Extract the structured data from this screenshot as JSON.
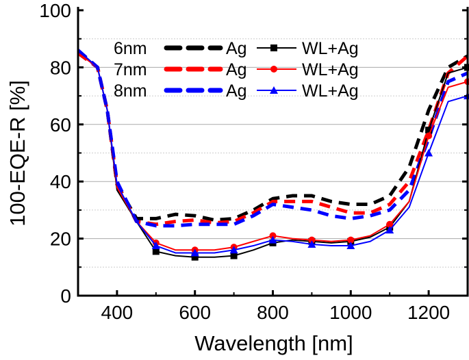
{
  "chart_data": {
    "type": "line",
    "xlabel": "Wavelength [nm]",
    "ylabel": "100-EQE-R [%]",
    "xlim": [
      300,
      1300
    ],
    "ylim": [
      0,
      100
    ],
    "xticks": [
      400,
      600,
      800,
      1000,
      1200
    ],
    "yticks": [
      0,
      20,
      40,
      60,
      80,
      100
    ],
    "grid": "horizontal, solid at major ticks, dotted at minor ticks",
    "legend": {
      "placement": "top",
      "rows": [
        {
          "thickness": "6nm",
          "dashed_label": "Ag",
          "solid_label": "WL+Ag"
        },
        {
          "thickness": "7nm",
          "dashed_label": "Ag",
          "solid_label": "WL+Ag"
        },
        {
          "thickness": "8nm",
          "dashed_label": "Ag",
          "solid_label": "WL+Ag"
        }
      ]
    },
    "x": [
      300,
      350,
      375,
      400,
      450,
      500,
      550,
      600,
      650,
      700,
      750,
      800,
      850,
      900,
      950,
      1000,
      1050,
      1100,
      1150,
      1200,
      1250,
      1300
    ],
    "series": [
      {
        "name": "6nm Ag",
        "color": "#000000",
        "style": "dashed",
        "marker": "none",
        "values": [
          85,
          80,
          65,
          39,
          27,
          27,
          28.5,
          28,
          26.5,
          27,
          30,
          34,
          35,
          35,
          33,
          32,
          32,
          35,
          45,
          65,
          80,
          84
        ]
      },
      {
        "name": "7nm Ag",
        "color": "#ff0000",
        "style": "dashed",
        "marker": "none",
        "values": [
          85,
          80,
          65,
          39,
          26,
          25,
          26,
          26.5,
          25.5,
          26,
          29,
          33,
          33,
          33,
          31,
          29,
          29,
          32,
          40,
          58,
          78,
          84
        ]
      },
      {
        "name": "8nm Ag",
        "color": "#0000ff",
        "style": "dashed",
        "marker": "none",
        "values": [
          86,
          80,
          65,
          40,
          26,
          24.5,
          24.5,
          25,
          25,
          25,
          28,
          32,
          31,
          30,
          28,
          27,
          28,
          30,
          37,
          55,
          75,
          78
        ]
      },
      {
        "name": "6nm WL+Ag",
        "color": "#000000",
        "style": "solid",
        "marker": "square",
        "values": [
          86,
          80,
          65,
          37,
          26,
          15.5,
          14,
          13.5,
          13.5,
          14,
          16,
          18.5,
          19.5,
          19,
          18.5,
          19,
          20.5,
          24,
          33,
          58,
          78,
          80
        ]
      },
      {
        "name": "7nm WL+Ag",
        "color": "#ff0000",
        "style": "solid",
        "marker": "circle",
        "values": [
          85,
          80,
          65,
          38,
          26,
          18.5,
          16,
          16,
          16,
          17,
          19,
          21,
          20,
          19.5,
          19,
          19.5,
          21,
          25,
          33,
          56,
          73,
          75
        ]
      },
      {
        "name": "8nm WL+Ag",
        "color": "#0000ff",
        "style": "solid",
        "marker": "triangle",
        "values": [
          86,
          80,
          65,
          39,
          26,
          17.5,
          15,
          15,
          15,
          16,
          17.5,
          19.5,
          19,
          18,
          17.5,
          17.5,
          19,
          23,
          31,
          50,
          68,
          70
        ]
      }
    ]
  }
}
